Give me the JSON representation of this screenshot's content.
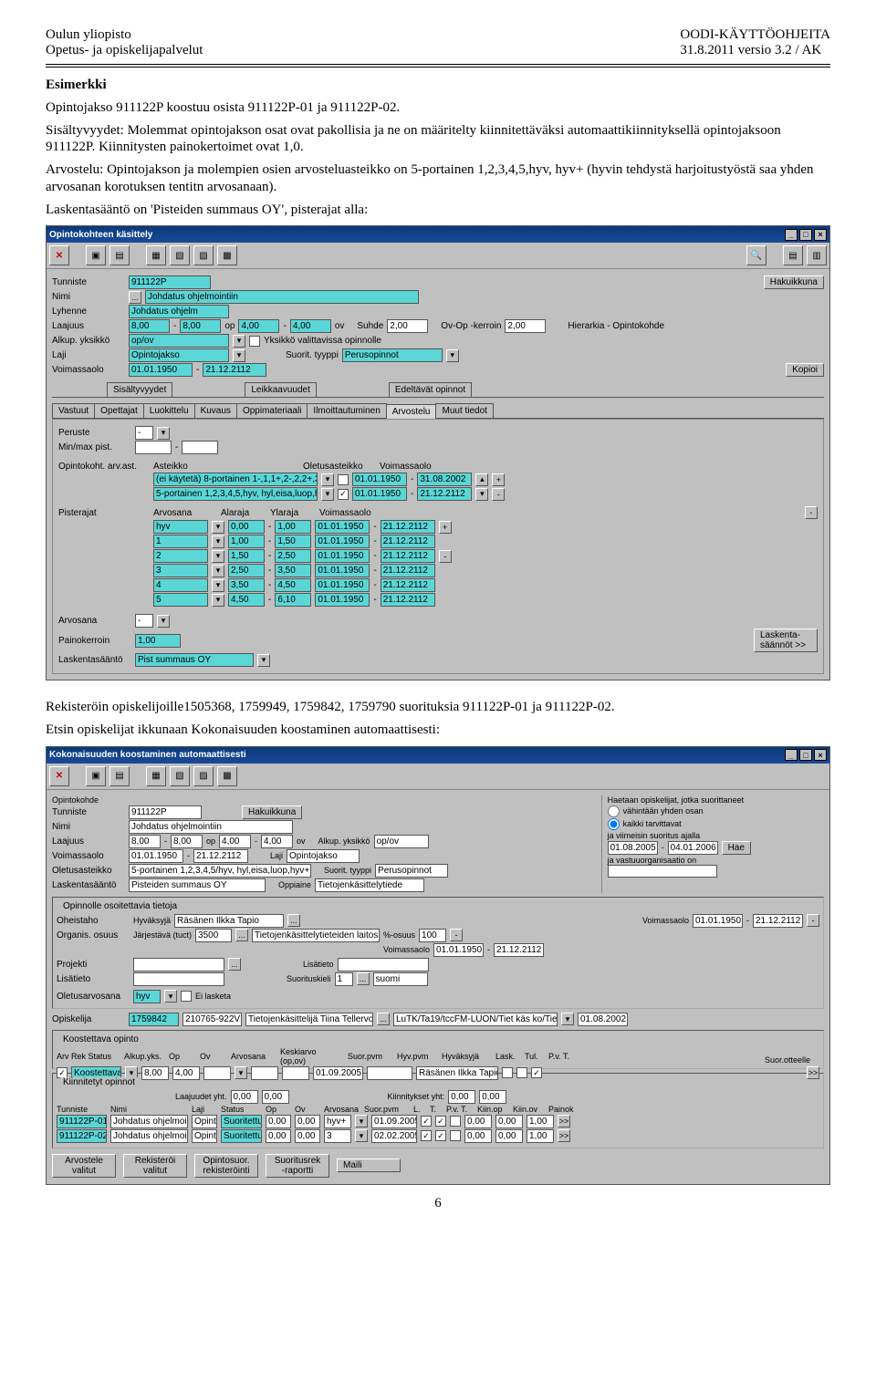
{
  "header": {
    "left1": "Oulun yliopisto",
    "left2": "Opetus- ja opiskelijapalvelut",
    "right1": "OODI-KÄYTTÖOHJEITA",
    "right2": "31.8.2011 versio 3.2 / AK"
  },
  "text": {
    "esimerkki": "Esimerkki",
    "p1": "Opintojakso 911122P koostuu osista 911122P-01 ja 911122P-02.",
    "p2": "Sisältyvyydet: Molemmat opintojakson osat ovat pakollisia ja ne on määritelty kiinnitettäväksi automaattikiinnityksellä opintojaksoon 911122P. Kiinnitysten painokertoimet ovat 1,0.",
    "p3": "Arvostelu: Opintojakson ja molempien osien arvosteluasteikko on 5-portainen 1,2,3,4,5,hyv, hyv+ (hyvin tehdystä harjoitustyöstä saa yhden arvosanan korotuksen tentitn arvosanaan).",
    "p4": "Laskentasääntö on 'Pisteiden summaus OY', pisterajat alla:",
    "p5": "Rekisteröin opiskelijoille1505368, 1759949, 1759842, 1759790 suorituksia 911122P-01 ja 911122P-02.",
    "p6": "Etsin opiskelijat ikkunaan Kokonaisuuden koostaminen automaattisesti:"
  },
  "win1": {
    "title": "Opintokohteen käsittely",
    "labels": {
      "tunniste": "Tunniste",
      "nimi": "Nimi",
      "lyhenne": "Lyhenne",
      "laajuus": "Laajuus",
      "alkyk": "Alkup. yksikkö",
      "laji": "Laji",
      "voimassa": "Voimassaolo",
      "suhde": "Suhde",
      "ovop": "Ov-Op -kerroin",
      "yksval": "Yksikkö valittavissa opinnolle",
      "suorit": "Suorit. tyyppi",
      "hier": "Hierarkia - Opintokohde",
      "hakuikkuna": "Hakuikkuna",
      "kopioi": "Kopioi"
    },
    "vals": {
      "tunniste": "911122P",
      "nimi": "Johdatus ohjelmointiin",
      "lyhenne": "Johdatus ohjelm",
      "laajuus_a": "8,00",
      "laajuus_b": "8,00",
      "laajuus_u": "op",
      "laajuus_c": "4,00",
      "laajuus_d": "4,00",
      "laajuus_u2": "ov",
      "suhde": "2,00",
      "ovop": "2,00",
      "alkyk": "op/ov",
      "laji": "Opintojakso",
      "suorit": "Perusopinnot",
      "voimA": "01.01.1950",
      "voimB": "21.12.2112"
    },
    "tabs1": [
      "Sisältyvyydet",
      "Leikkaavuudet",
      "Edeltävät opinnot"
    ],
    "tabs2": [
      "Vastuut",
      "Opettajat",
      "Luokittelu",
      "Kuvaus",
      "Oppimateriaali",
      "Ilmoittautuminen",
      "Arvostelu",
      "Muut tiedot"
    ],
    "tabActive": "Arvostelu",
    "peruste": "Peruste",
    "minmax": "Min/max pist.",
    "opink": "Opintokoht. arv.ast.",
    "asteikko": "Asteikko",
    "oletusast": "Oletusasteikko",
    "voimlbl": "Voimassaolo",
    "ast1": "(ei käytetä) 8-portainen 1-,1,1+,2-,2,2+,3",
    "ast1a": "01.01.1950",
    "ast1b": "31.08.2002",
    "ast2": "5-portainen 1,2,3,4,5,hyv, hyl,eisa,luop,h",
    "ast2a": "01.01.1950",
    "ast2b": "21.12.2112",
    "pisterajat": "Pisterajat",
    "cols": [
      "Arvosana",
      "Alaraja",
      "Ylaraja",
      "Voimassaolo"
    ],
    "rows": [
      [
        "hyv",
        "0,00",
        "1,00",
        "01.01.1950",
        "21.12.2112"
      ],
      [
        "1",
        "1,00",
        "1,50",
        "01.01.1950",
        "21.12.2112"
      ],
      [
        "2",
        "1,50",
        "2,50",
        "01.01.1950",
        "21.12.2112"
      ],
      [
        "3",
        "2,50",
        "3,50",
        "01.01.1950",
        "21.12.2112"
      ],
      [
        "4",
        "3,50",
        "4,50",
        "01.01.1950",
        "21.12.2112"
      ],
      [
        "5",
        "4,50",
        "6,10",
        "01.01.1950",
        "21.12.2112"
      ]
    ],
    "arvosana": "Arvosana",
    "painok": "Painokerroin",
    "painokv": "1,00",
    "laskenta": "Laskentasääntö",
    "laskentav": "Pist summaus OY",
    "laskentasaan": "Laskenta-säännöt >>"
  },
  "win2": {
    "title": "Kokonaisuuden koostaminen automaattisesti",
    "left": {
      "opk": "Opintokohde",
      "tun": "Tunniste",
      "tunv": "911122P",
      "nimi": "Nimi",
      "nimiv": "Johdatus ohjelmointiin",
      "laaj": "Laajuus",
      "la": "8,00",
      "lb": "8,00",
      "lu": "op",
      "lc": "4,00",
      "ld": "4,00",
      "lu2": "ov",
      "voim": "Voimassaolo",
      "va": "01.01.1950",
      "vb": "21.12.2112",
      "alku": "Alkup. yksikkö",
      "alkuv": "op/ov",
      "olet": "Oletusasteikko",
      "oletv": "5-portainen 1,2,3,4,5/hyv, hyl,eisa,luop,hyv+",
      "laji": "Laji",
      "lajiv": "Opintojakso",
      "lask": "Laskentasääntö",
      "laskv": "Pisteiden summaus OY",
      "suor": "Suorit. tyyppi",
      "suorv": "Perusopinnot",
      "oppi": "Oppiaine",
      "oppiv": "Tietojenkäsittelytiede"
    },
    "haku": "Hakuikkuna",
    "right": {
      "hdr": "Haetaan opiskelijat, jotka suorittaneet",
      "r1": "vähintään yhden osan",
      "r2": "kaikki tarvittavat",
      "r3": "ja viimeisin suoritus ajalla",
      "d1": "01.08.2005",
      "d2": "04.01.2006",
      "hae": "Hae",
      "r4": "ja vastuuorganisaatio on"
    },
    "g1": {
      "title": "Opinnolle osoitettavia tietoja",
      "oheis": "Oheistaho",
      "hyv": "Hyväksyjä",
      "hyvv": "Räsänen Ilkka Tapio",
      "voim": "Voimassaolo",
      "va": "01.01.1950",
      "vb": "21.12.2112",
      "org": "Organis. osuus",
      "jar": "Järjestävä (tuct)",
      "jarn": "3500",
      "jarv": "Tietojenkäsittelytieteiden laitos",
      "pos": " %-osuus",
      "posv": "100",
      "voim2a": "01.01.1950",
      "voim2b": "21.12.2112",
      "proj": "Projekti",
      "lis": "Lisätieto",
      "suork": "Suorituskieli",
      "skn": "1",
      "skv": "suomi",
      "olarv": "Oletusarvosana",
      "olarvv": "hyv",
      "eil": "Ei lasketa"
    },
    "g2": {
      "opis": "Opiskelija",
      "opisn": "1759842",
      "opisv": "210765-922V",
      "opisname": "Tietojenkäsittelijä Tiina Tellervo",
      "tutk": "LuTK/Ta19/tccFM-LUON/Tiet käs ko/Tietover",
      "tutkd": "01.08.2002",
      "koost": "Koostettava opinto",
      "arv": "Arv Rek Status",
      "alku": "Alkup.yks.",
      "op": "Op",
      "ov": "Ov",
      "status": "Koostettava",
      "opv": "8,00",
      "ovv": "4,00",
      "suorp": "Suor.pvm",
      "suorpv": "01.09.2005",
      "hyvp": "Hyv.pvm",
      "hyvaks": "Hyväksyjä",
      "hyvaksv": "Räsänen Ilkka Tapio",
      "lask": "Lask.",
      "tul": "Tul.",
      "pvt": "P.v. T.",
      "suorott": "Suor.otteelle",
      "arvosana": "Arvosana",
      "keskiarvo": "Keskiarvo (op,ov)"
    },
    "g3": {
      "title": "Kiinnitetyt opinnot",
      "laajy": "Laajuudet yht.",
      "l1": "0,00",
      "l2": "0,00",
      "kiiny": "Kiinnitykset yht:",
      "k1": "0,00",
      "k2": "0,00",
      "cols": [
        "Tunniste",
        "Nimi",
        "Laji",
        "Status",
        "Op",
        "Ov",
        "Arvosana",
        "Suor.pvm",
        "L.",
        "T.",
        "P.v. T.",
        "Kiin.op",
        "Kiin.ov",
        "Painok"
      ],
      "rows": [
        [
          "911122P-01",
          "Johdatus ohjelmoint",
          "Opint",
          "Suoritettu",
          "0,00",
          "0,00",
          "hyv+",
          "01.09.2005",
          "0,00",
          "0,00",
          "1,00"
        ],
        [
          "911122P-02",
          "Johdatus ohjelmoint",
          "Opint",
          "Suoritettu",
          "0,00",
          "0,00",
          "3",
          "02.02.2005",
          "0,00",
          "0,00",
          "1,00"
        ]
      ]
    },
    "btns": [
      "Arvostele valitut",
      "Rekisteröi valitut",
      "Opintosuor. rekisteröinti",
      "Suoritusrek -raportti",
      "Maili"
    ]
  },
  "pagenum": "6"
}
